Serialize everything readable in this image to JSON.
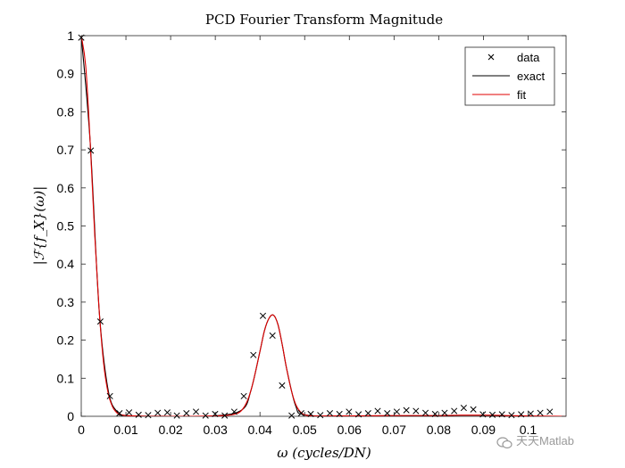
{
  "chart_data": {
    "type": "line",
    "title": "PCD Fourier Transform Magnitude",
    "xlabel": "ω (cycles/DN)",
    "ylabel": "|ℱ{f_X}(ω)|",
    "xlim": [
      0,
      0.1085
    ],
    "ylim": [
      0,
      1
    ],
    "xticks": [
      0,
      0.01,
      0.02,
      0.03,
      0.04,
      0.05,
      0.06,
      0.07,
      0.08,
      0.09,
      0.1
    ],
    "xtick_labels": [
      "0",
      "0.01",
      "0.02",
      "0.03",
      "0.04",
      "0.05",
      "0.06",
      "0.07",
      "0.08",
      "0.09",
      "0.1"
    ],
    "yticks": [
      0,
      0.1,
      0.2,
      0.3,
      0.4,
      0.5,
      0.6,
      0.7,
      0.8,
      0.9,
      1
    ],
    "ytick_labels": [
      "0",
      "0.1",
      "0.2",
      "0.3",
      "0.4",
      "0.5",
      "0.6",
      "0.7",
      "0.8",
      "0.9",
      "1"
    ],
    "grid": false,
    "legend_position": "top-right",
    "series": [
      {
        "name": "data",
        "style": "markers",
        "marker": "x",
        "color": "#000000",
        "x": [
          0,
          0.00214,
          0.00428,
          0.00642,
          0.00856,
          0.0107,
          0.01284,
          0.01498,
          0.01712,
          0.01926,
          0.0214,
          0.02354,
          0.02568,
          0.02782,
          0.02996,
          0.0321,
          0.03424,
          0.03638,
          0.03852,
          0.04066,
          0.0428,
          0.04494,
          0.04708,
          0.04922,
          0.05136,
          0.0535,
          0.05564,
          0.05778,
          0.05992,
          0.06206,
          0.0642,
          0.06634,
          0.06848,
          0.07062,
          0.07276,
          0.0749,
          0.07704,
          0.07918,
          0.08132,
          0.08346,
          0.0856,
          0.08774,
          0.08988,
          0.09202,
          0.09416,
          0.0963,
          0.09844,
          0.10058,
          0.10272,
          0.10486
        ],
        "y": [
          0.995,
          0.698,
          0.249,
          0.053,
          0.008,
          0.01,
          0.004,
          0.003,
          0.009,
          0.01,
          0.002,
          0.008,
          0.012,
          0.002,
          0.006,
          0.002,
          0.012,
          0.053,
          0.161,
          0.264,
          0.212,
          0.081,
          0.002,
          0.008,
          0.006,
          0.003,
          0.008,
          0.006,
          0.012,
          0.005,
          0.008,
          0.014,
          0.008,
          0.012,
          0.016,
          0.014,
          0.009,
          0.006,
          0.009,
          0.014,
          0.022,
          0.018,
          0.005,
          0.004,
          0.005,
          0.003,
          0.005,
          0.007,
          0.009,
          0.012
        ]
      },
      {
        "name": "exact",
        "style": "line",
        "color": "#000000",
        "x": [
          0,
          0.002,
          0.004,
          0.006,
          0.008,
          0.01,
          0.02,
          0.03,
          0.036,
          0.038,
          0.04,
          0.041,
          0.042,
          0.043,
          0.044,
          0.045,
          0.046,
          0.048,
          0.05,
          0.06,
          0.08,
          0.09,
          0.1,
          0.1085
        ],
        "y": [
          1.0,
          0.72,
          0.28,
          0.07,
          0.012,
          0.002,
          0.0,
          0.001,
          0.017,
          0.069,
          0.171,
          0.225,
          0.257,
          0.266,
          0.242,
          0.187,
          0.123,
          0.027,
          0.004,
          0.0,
          0.0,
          0.0,
          0.0,
          0.0
        ]
      },
      {
        "name": "fit",
        "style": "line",
        "color": "#e00000",
        "x": [
          0,
          0.001,
          0.002,
          0.003,
          0.004,
          0.005,
          0.006,
          0.007,
          0.008,
          0.009,
          0.01,
          0.012,
          0.015,
          0.02,
          0.025,
          0.03,
          0.033,
          0.035,
          0.036,
          0.037,
          0.038,
          0.039,
          0.04,
          0.041,
          0.042,
          0.043,
          0.044,
          0.045,
          0.046,
          0.047,
          0.048,
          0.049,
          0.05,
          0.052,
          0.055,
          0.06,
          0.07,
          0.08,
          0.085,
          0.09,
          0.095,
          0.1,
          0.1085
        ],
        "y": [
          1.0,
          0.92,
          0.72,
          0.48,
          0.28,
          0.14,
          0.062,
          0.025,
          0.009,
          0.004,
          0.002,
          0.001,
          0.0,
          0.0,
          0.0,
          0.001,
          0.003,
          0.008,
          0.017,
          0.036,
          0.069,
          0.117,
          0.171,
          0.225,
          0.257,
          0.266,
          0.242,
          0.187,
          0.123,
          0.069,
          0.031,
          0.012,
          0.004,
          0.001,
          0.001,
          0.001,
          0.002,
          0.002,
          0.003,
          0.003,
          0.002,
          0.001,
          0.0
        ]
      }
    ]
  },
  "watermark": {
    "text": "天天Matlab",
    "icon": "wechat-icon"
  },
  "colors": {
    "axis": "#262626",
    "data_marker": "#000000",
    "exact_line": "#000000",
    "fit_line": "#e00000",
    "watermark": "#9a9a9a"
  }
}
